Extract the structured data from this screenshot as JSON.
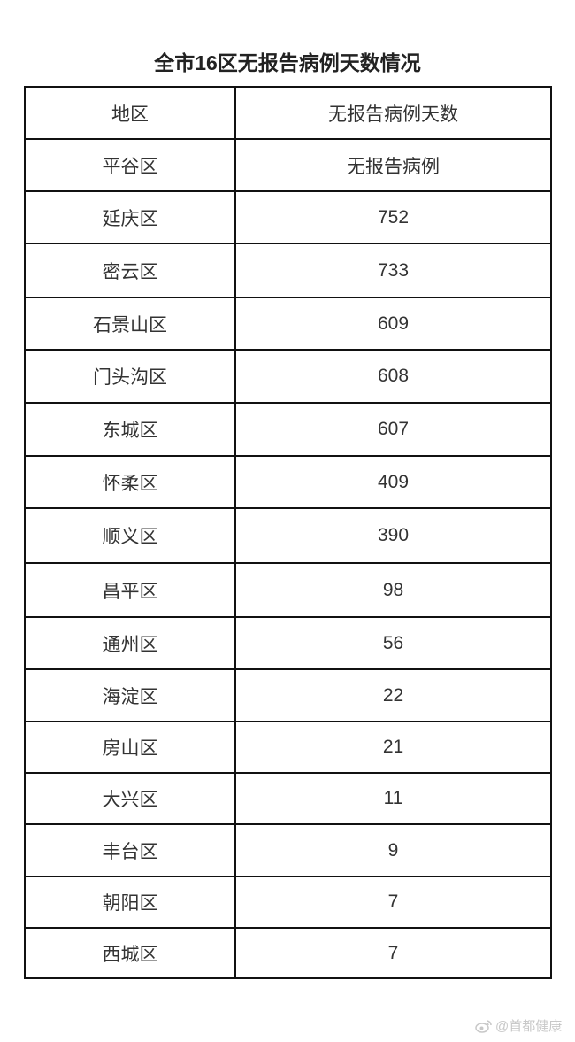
{
  "title": "全市16区无报告病例天数情况",
  "table": {
    "headers": [
      "地区",
      "无报告病例天数"
    ],
    "rows": [
      [
        "平谷区",
        "无报告病例"
      ],
      [
        "延庆区",
        "752"
      ],
      [
        "密云区",
        "733"
      ],
      [
        "石景山区",
        "609"
      ],
      [
        "门头沟区",
        "608"
      ],
      [
        "东城区",
        "607"
      ],
      [
        "怀柔区",
        "409"
      ],
      [
        "顺义区",
        "390"
      ],
      [
        "昌平区",
        "98"
      ],
      [
        "通州区",
        "56"
      ],
      [
        "海淀区",
        "22"
      ],
      [
        "房山区",
        "21"
      ],
      [
        "大兴区",
        "11"
      ],
      [
        "丰台区",
        "9"
      ],
      [
        "朝阳区",
        "7"
      ],
      [
        "西城区",
        "7"
      ]
    ]
  },
  "watermark": {
    "icon": "weibo-icon",
    "text": "@首都健康"
  }
}
